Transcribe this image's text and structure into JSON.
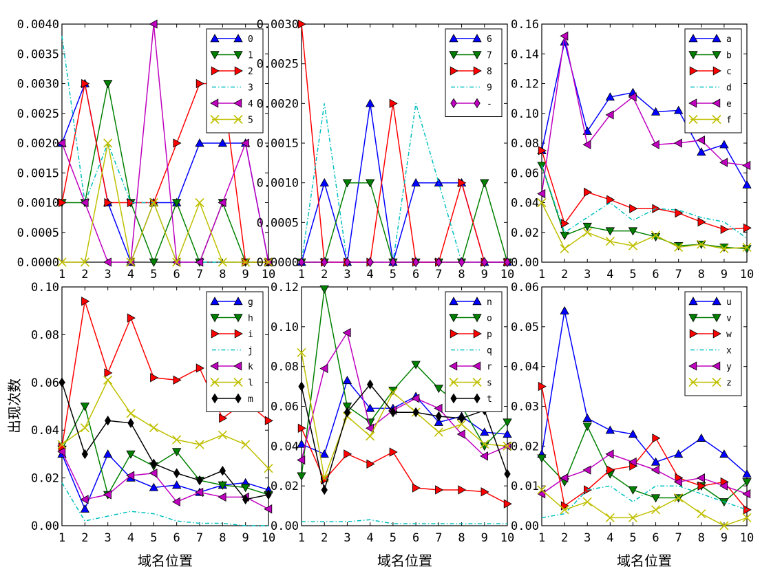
{
  "figure": {
    "ylabel": "出现次数",
    "xlabel": "域名位置"
  },
  "chart_data": [
    {
      "type": "line",
      "x": [
        1,
        2,
        3,
        4,
        5,
        6,
        7,
        8,
        9,
        10
      ],
      "ylim": [
        0,
        0.004
      ],
      "yticks": [
        "0.0000",
        "0.0005",
        "0.0010",
        "0.0015",
        "0.0020",
        "0.0025",
        "0.0030",
        "0.0035",
        "0.0040"
      ],
      "xticks": [
        "1",
        "2",
        "3",
        "4",
        "5",
        "6",
        "7",
        "8",
        "9",
        "10"
      ],
      "ylabel": "出现次数",
      "xlabel": "",
      "legend": "top-right",
      "series": [
        {
          "name": "0",
          "color": "#0000ff",
          "marker": "triangle-up",
          "dash": "solid",
          "values": [
            0.002,
            0.003,
            0.001,
            0.0,
            0.001,
            0.001,
            0.002,
            0.002,
            0.002,
            0.0
          ]
        },
        {
          "name": "1",
          "color": "#008000",
          "marker": "triangle-down",
          "dash": "solid",
          "values": [
            0.001,
            0.001,
            0.003,
            0.001,
            0.0,
            0.001,
            0.0,
            0.001,
            0.0,
            0.0
          ]
        },
        {
          "name": "2",
          "color": "#ff0000",
          "marker": "triangle-right",
          "dash": "solid",
          "values": [
            0.001,
            0.003,
            0.001,
            0.001,
            0.001,
            0.002,
            0.003,
            0.003,
            0.0,
            0.0
          ]
        },
        {
          "name": "3",
          "color": "#00bfbf",
          "marker": "none",
          "dash": "dashdot",
          "values": [
            0.0038,
            0.001,
            0.002,
            0.001,
            0.001,
            0.0,
            0.0,
            0.0,
            0.0,
            0.0
          ]
        },
        {
          "name": "4",
          "color": "#bf00bf",
          "marker": "triangle-left",
          "dash": "solid",
          "values": [
            0.002,
            0.001,
            0.0,
            0.0,
            0.004,
            0.0,
            0.0,
            0.001,
            0.002,
            0.0
          ]
        },
        {
          "name": "5",
          "color": "#bfbf00",
          "marker": "x",
          "dash": "solid",
          "values": [
            0.0,
            0.0,
            0.002,
            0.0,
            0.001,
            0.0,
            0.001,
            0.0,
            0.0,
            0.0
          ]
        }
      ]
    },
    {
      "type": "line",
      "x": [
        1,
        2,
        3,
        4,
        5,
        6,
        7,
        8,
        9,
        10
      ],
      "ylim": [
        0,
        0.003
      ],
      "yticks": [
        "0.0000",
        "0.0005",
        "0.0010",
        "0.0015",
        "0.0020",
        "0.0025",
        "0.0030"
      ],
      "xticks": [
        "1",
        "2",
        "3",
        "4",
        "5",
        "6",
        "7",
        "8",
        "9",
        "10"
      ],
      "ylabel": "",
      "xlabel": "",
      "legend": "top-right",
      "series": [
        {
          "name": "6",
          "color": "#0000ff",
          "marker": "triangle-up",
          "dash": "solid",
          "values": [
            0.0,
            0.001,
            0.0,
            0.002,
            0.0,
            0.001,
            0.001,
            0.001,
            0.0,
            0.0
          ]
        },
        {
          "name": "7",
          "color": "#008000",
          "marker": "triangle-down",
          "dash": "solid",
          "values": [
            0.0,
            0.0,
            0.001,
            0.001,
            0.0,
            0.0,
            0.0,
            0.0,
            0.001,
            0.0
          ]
        },
        {
          "name": "8",
          "color": "#ff0000",
          "marker": "triangle-right",
          "dash": "solid",
          "values": [
            0.003,
            0.0,
            0.0,
            0.0,
            0.002,
            0.0,
            0.0,
            0.001,
            0.0,
            0.0
          ]
        },
        {
          "name": "9",
          "color": "#00bfbf",
          "marker": "none",
          "dash": "dashdot",
          "values": [
            0.0,
            0.002,
            0.0,
            0.0,
            0.0,
            0.002,
            0.001,
            0.0,
            0.0,
            0.0
          ]
        },
        {
          "name": "-",
          "color": "#bf00bf",
          "marker": "diamond",
          "dash": "solid",
          "values": [
            0.0,
            0.0,
            0.0,
            0.0,
            0.0,
            0.0,
            0.0,
            0.0,
            0.0,
            0.0
          ]
        }
      ]
    },
    {
      "type": "line",
      "x": [
        1,
        2,
        3,
        4,
        5,
        6,
        7,
        8,
        9,
        10
      ],
      "ylim": [
        0,
        0.16
      ],
      "yticks": [
        "0.00",
        "0.02",
        "0.04",
        "0.06",
        "0.08",
        "0.10",
        "0.12",
        "0.14",
        "0.16"
      ],
      "xticks": [
        "1",
        "2",
        "3",
        "4",
        "5",
        "6",
        "7",
        "8",
        "9",
        "10"
      ],
      "ylabel": "",
      "xlabel": "",
      "legend": "top-right",
      "series": [
        {
          "name": "a",
          "color": "#0000ff",
          "marker": "triangle-up",
          "dash": "solid",
          "values": [
            0.075,
            0.148,
            0.088,
            0.111,
            0.114,
            0.101,
            0.102,
            0.074,
            0.079,
            0.052
          ]
        },
        {
          "name": "b",
          "color": "#008000",
          "marker": "triangle-down",
          "dash": "solid",
          "values": [
            0.065,
            0.018,
            0.024,
            0.021,
            0.021,
            0.017,
            0.011,
            0.012,
            0.01,
            0.009
          ]
        },
        {
          "name": "c",
          "color": "#ff0000",
          "marker": "triangle-right",
          "dash": "solid",
          "values": [
            0.075,
            0.026,
            0.047,
            0.042,
            0.036,
            0.036,
            0.033,
            0.027,
            0.022,
            0.023
          ]
        },
        {
          "name": "d",
          "color": "#00bfbf",
          "marker": "none",
          "dash": "dashdot",
          "values": [
            0.065,
            0.02,
            0.03,
            0.04,
            0.028,
            0.036,
            0.035,
            0.03,
            0.027,
            0.016
          ]
        },
        {
          "name": "e",
          "color": "#bf00bf",
          "marker": "triangle-left",
          "dash": "solid",
          "values": [
            0.046,
            0.152,
            0.079,
            0.099,
            0.111,
            0.079,
            0.08,
            0.082,
            0.067,
            0.065
          ]
        },
        {
          "name": "f",
          "color": "#bfbf00",
          "marker": "x",
          "dash": "solid",
          "values": [
            0.04,
            0.009,
            0.02,
            0.014,
            0.011,
            0.018,
            0.01,
            0.012,
            0.009,
            0.01
          ]
        }
      ]
    },
    {
      "type": "line",
      "x": [
        1,
        2,
        3,
        4,
        5,
        6,
        7,
        8,
        9,
        10
      ],
      "ylim": [
        0,
        0.1
      ],
      "yticks": [
        "0.00",
        "0.02",
        "0.04",
        "0.06",
        "0.08",
        "0.10"
      ],
      "xticks": [
        "1",
        "2",
        "3",
        "4",
        "5",
        "6",
        "7",
        "8",
        "9",
        "10"
      ],
      "ylabel": "出现次数",
      "xlabel": "域名位置",
      "legend": "top-right",
      "series": [
        {
          "name": "g",
          "color": "#0000ff",
          "marker": "triangle-up",
          "dash": "solid",
          "values": [
            0.03,
            0.007,
            0.03,
            0.02,
            0.016,
            0.017,
            0.014,
            0.017,
            0.018,
            0.015
          ]
        },
        {
          "name": "h",
          "color": "#008000",
          "marker": "triangle-down",
          "dash": "solid",
          "values": [
            0.032,
            0.05,
            0.013,
            0.03,
            0.025,
            0.031,
            0.019,
            0.017,
            0.016,
            0.013
          ]
        },
        {
          "name": "i",
          "color": "#ff0000",
          "marker": "triangle-right",
          "dash": "solid",
          "values": [
            0.033,
            0.094,
            0.064,
            0.087,
            0.062,
            0.061,
            0.066,
            0.045,
            0.052,
            0.044
          ]
        },
        {
          "name": "j",
          "color": "#00bfbf",
          "marker": "none",
          "dash": "dashdot",
          "values": [
            0.018,
            0.002,
            0.004,
            0.006,
            0.005,
            0.002,
            0.001,
            0.001,
            0.0,
            0.0
          ]
        },
        {
          "name": "k",
          "color": "#bf00bf",
          "marker": "triangle-left",
          "dash": "solid",
          "values": [
            0.031,
            0.011,
            0.013,
            0.021,
            0.022,
            0.01,
            0.014,
            0.012,
            0.012,
            0.007
          ]
        },
        {
          "name": "l",
          "color": "#bfbf00",
          "marker": "x",
          "dash": "solid",
          "values": [
            0.034,
            0.041,
            0.061,
            0.047,
            0.041,
            0.036,
            0.034,
            0.038,
            0.034,
            0.024
          ]
        },
        {
          "name": "m",
          "color": "#000000",
          "marker": "diamond",
          "dash": "solid",
          "values": [
            0.06,
            0.03,
            0.044,
            0.043,
            0.026,
            0.022,
            0.019,
            0.023,
            0.011,
            0.013
          ]
        }
      ]
    },
    {
      "type": "line",
      "x": [
        1,
        2,
        3,
        4,
        5,
        6,
        7,
        8,
        9,
        10
      ],
      "ylim": [
        0,
        0.12
      ],
      "yticks": [
        "0.00",
        "0.02",
        "0.04",
        "0.06",
        "0.08",
        "0.10",
        "0.12"
      ],
      "xticks": [
        "1",
        "2",
        "3",
        "4",
        "5",
        "6",
        "7",
        "8",
        "9",
        "10"
      ],
      "ylabel": "",
      "xlabel": "域名位置",
      "legend": "top-right",
      "series": [
        {
          "name": "n",
          "color": "#0000ff",
          "marker": "triangle-up",
          "dash": "solid",
          "values": [
            0.041,
            0.036,
            0.073,
            0.059,
            0.059,
            0.065,
            0.052,
            0.055,
            0.047,
            0.046
          ]
        },
        {
          "name": "o",
          "color": "#008000",
          "marker": "triangle-down",
          "dash": "solid",
          "values": [
            0.025,
            0.119,
            0.06,
            0.052,
            0.068,
            0.081,
            0.069,
            0.06,
            0.04,
            0.052
          ]
        },
        {
          "name": "p",
          "color": "#ff0000",
          "marker": "triangle-right",
          "dash": "solid",
          "values": [
            0.049,
            0.023,
            0.036,
            0.031,
            0.037,
            0.019,
            0.018,
            0.018,
            0.017,
            0.011
          ]
        },
        {
          "name": "q",
          "color": "#00bfbf",
          "marker": "none",
          "dash": "dashdot",
          "values": [
            0.002,
            0.002,
            0.002,
            0.003,
            0.001,
            0.001,
            0.001,
            0.001,
            0.001,
            0.001
          ]
        },
        {
          "name": "r",
          "color": "#bf00bf",
          "marker": "triangle-left",
          "dash": "solid",
          "values": [
            0.033,
            0.079,
            0.097,
            0.049,
            0.058,
            0.064,
            0.059,
            0.046,
            0.035,
            0.04
          ]
        },
        {
          "name": "s",
          "color": "#bfbf00",
          "marker": "x",
          "dash": "solid",
          "values": [
            0.087,
            0.024,
            0.055,
            0.045,
            0.067,
            0.057,
            0.047,
            0.051,
            0.041,
            0.04
          ]
        },
        {
          "name": "t",
          "color": "#000000",
          "marker": "diamond",
          "dash": "solid",
          "values": [
            0.07,
            0.018,
            0.057,
            0.071,
            0.057,
            0.057,
            0.055,
            0.054,
            0.058,
            0.026
          ]
        }
      ]
    },
    {
      "type": "line",
      "x": [
        1,
        2,
        3,
        4,
        5,
        6,
        7,
        8,
        9,
        10
      ],
      "ylim": [
        0,
        0.06
      ],
      "yticks": [
        "0.00",
        "0.01",
        "0.02",
        "0.03",
        "0.04",
        "0.05",
        "0.06"
      ],
      "xticks": [
        "1",
        "2",
        "3",
        "4",
        "5",
        "6",
        "7",
        "8",
        "9",
        "10"
      ],
      "ylabel": "",
      "xlabel": "域名位置",
      "legend": "top-right",
      "series": [
        {
          "name": "u",
          "color": "#0000ff",
          "marker": "triangle-up",
          "dash": "solid",
          "values": [
            0.018,
            0.054,
            0.027,
            0.024,
            0.023,
            0.016,
            0.018,
            0.022,
            0.018,
            0.013
          ]
        },
        {
          "name": "v",
          "color": "#008000",
          "marker": "triangle-down",
          "dash": "solid",
          "values": [
            0.017,
            0.011,
            0.025,
            0.013,
            0.009,
            0.007,
            0.007,
            0.01,
            0.006,
            0.011
          ]
        },
        {
          "name": "w",
          "color": "#ff0000",
          "marker": "triangle-right",
          "dash": "solid",
          "values": [
            0.035,
            0.005,
            0.009,
            0.014,
            0.015,
            0.022,
            0.012,
            0.01,
            0.011,
            0.004
          ]
        },
        {
          "name": "x",
          "color": "#00bfbf",
          "marker": "none",
          "dash": "dashdot",
          "values": [
            0.002,
            0.003,
            0.009,
            0.01,
            0.006,
            0.01,
            0.01,
            0.008,
            0.006,
            0.004
          ]
        },
        {
          "name": "y",
          "color": "#bf00bf",
          "marker": "triangle-left",
          "dash": "solid",
          "values": [
            0.008,
            0.012,
            0.014,
            0.018,
            0.016,
            0.014,
            0.011,
            0.012,
            0.01,
            0.008
          ]
        },
        {
          "name": "z",
          "color": "#bfbf00",
          "marker": "x",
          "dash": "solid",
          "values": [
            0.009,
            0.004,
            0.006,
            0.002,
            0.002,
            0.004,
            0.007,
            0.003,
            0.0,
            0.002
          ]
        }
      ]
    }
  ]
}
